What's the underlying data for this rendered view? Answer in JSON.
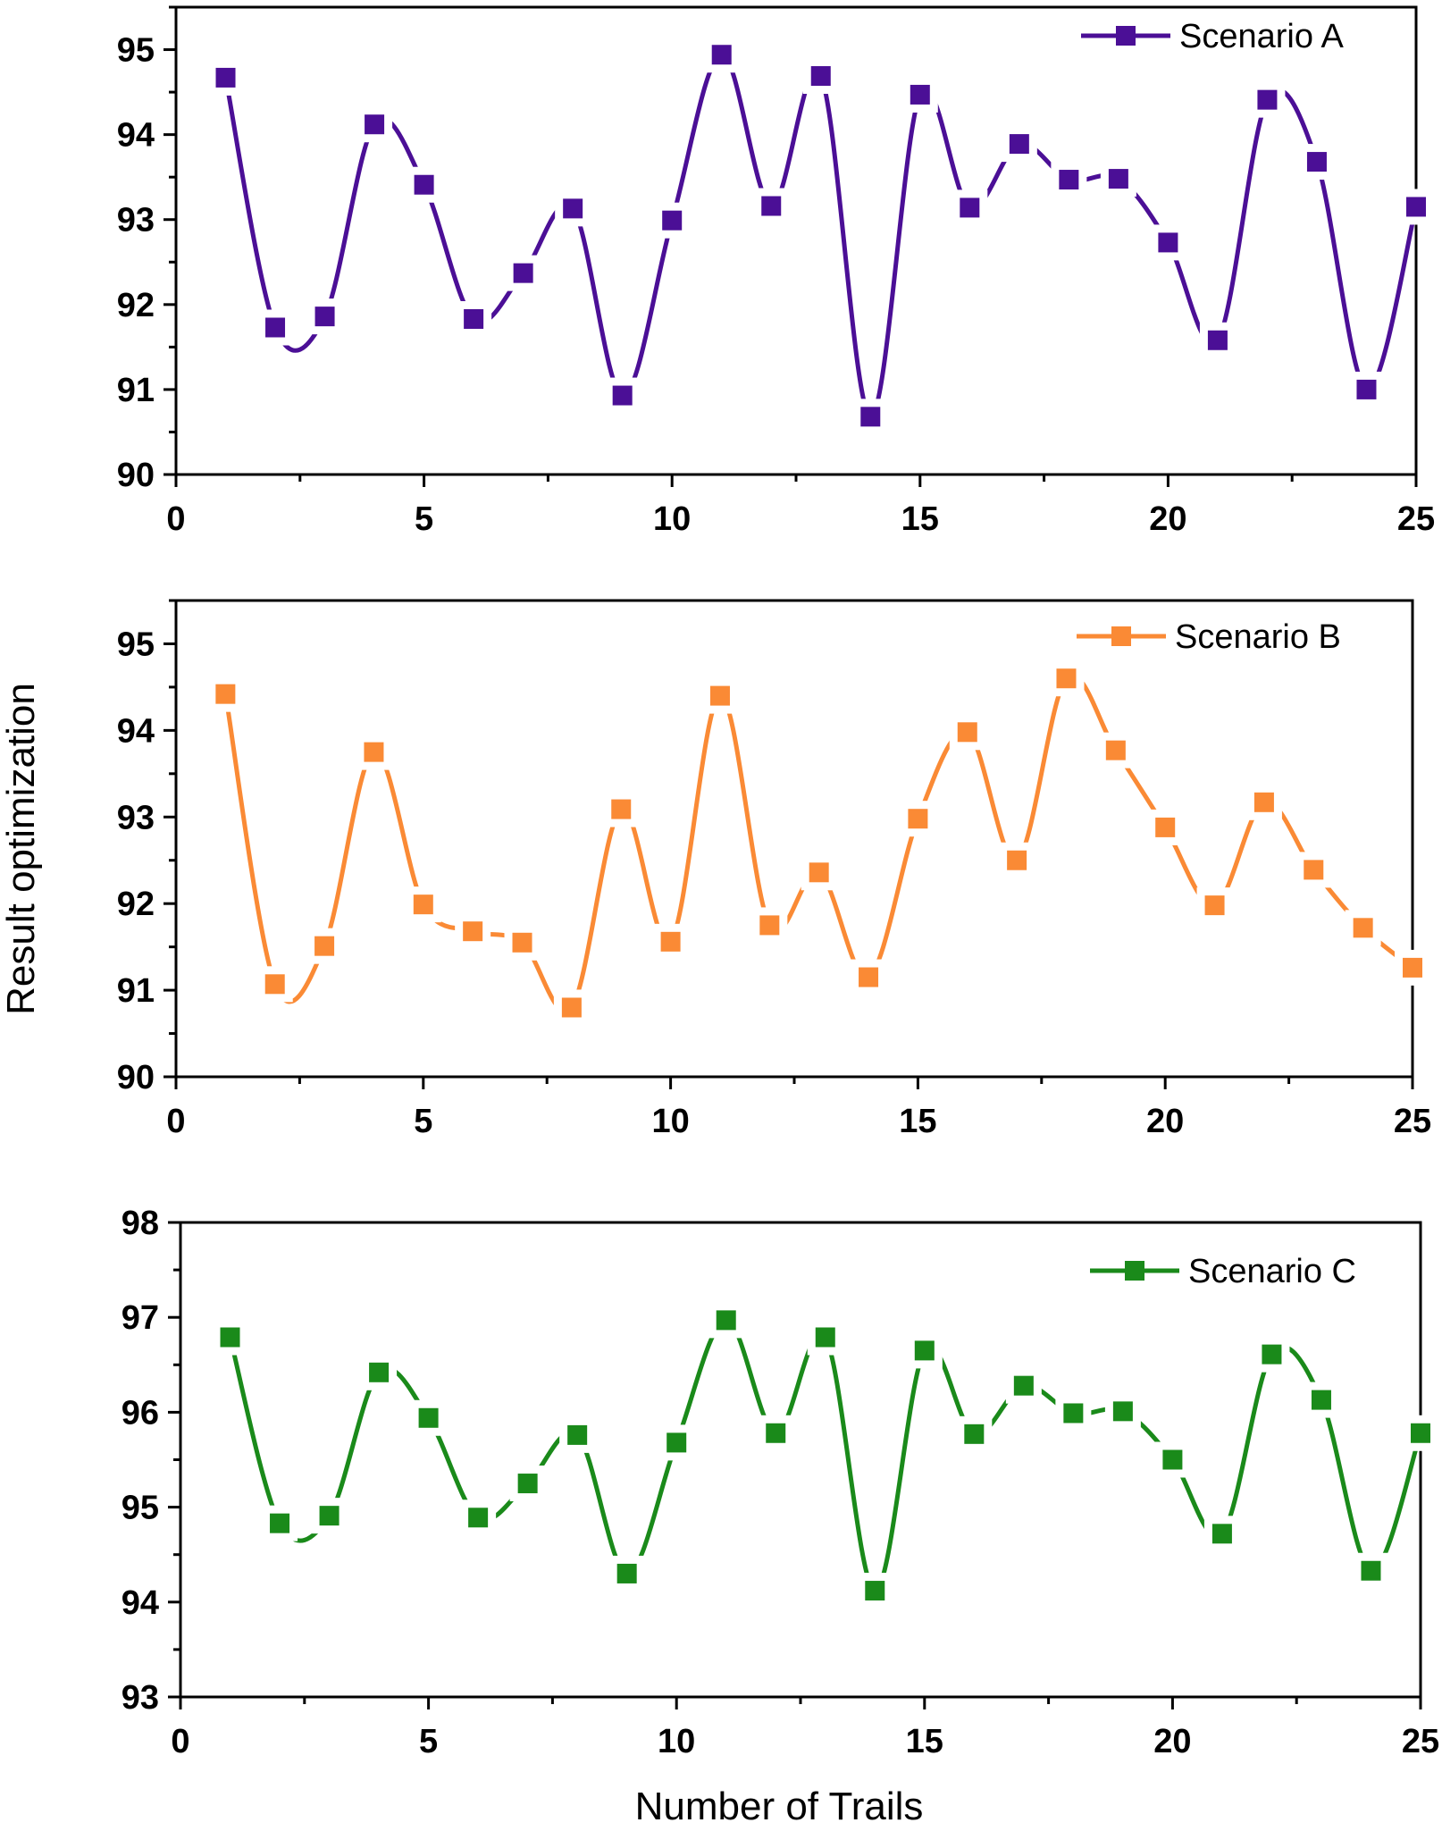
{
  "figure": {
    "ylabel": "Result optimization",
    "xlabel": "Number of Trails"
  },
  "chart_data": [
    {
      "type": "line",
      "x": [
        1,
        2,
        3,
        4,
        5,
        6,
        7,
        8,
        9,
        10,
        11,
        12,
        13,
        14,
        15,
        16,
        17,
        18,
        19,
        20,
        21,
        22,
        23,
        24,
        25
      ],
      "series": [
        {
          "name": "Scenario A",
          "color": "#4b0f96",
          "marker": "square",
          "values": [
            94.67,
            91.73,
            91.86,
            94.12,
            93.41,
            91.83,
            92.37,
            93.13,
            90.93,
            92.99,
            94.94,
            93.16,
            94.69,
            90.68,
            94.47,
            93.14,
            93.89,
            93.47,
            93.48,
            92.73,
            91.58,
            94.41,
            93.68,
            91.0,
            93.15
          ]
        }
      ],
      "xlim": [
        0,
        25
      ],
      "ylim": [
        90,
        95.5
      ],
      "xticks": [
        0,
        5,
        10,
        15,
        20,
        25
      ],
      "yticks": [
        90,
        91,
        92,
        93,
        94,
        95
      ],
      "grid": false,
      "legend": "top-right"
    },
    {
      "type": "line",
      "x": [
        1,
        2,
        3,
        4,
        5,
        6,
        7,
        8,
        9,
        10,
        11,
        12,
        13,
        14,
        15,
        16,
        17,
        18,
        19,
        20,
        21,
        22,
        23,
        24,
        25
      ],
      "series": [
        {
          "name": "Scenario B",
          "color": "#fa8a35",
          "marker": "square",
          "values": [
            94.42,
            91.07,
            91.51,
            93.75,
            91.99,
            91.68,
            91.55,
            90.8,
            93.09,
            91.56,
            94.4,
            91.75,
            92.36,
            91.15,
            92.98,
            93.98,
            92.5,
            94.6,
            93.77,
            92.88,
            91.98,
            93.17,
            92.39,
            91.72,
            91.26
          ]
        }
      ],
      "xlim": [
        0,
        25
      ],
      "ylim": [
        90,
        95.5
      ],
      "xticks": [
        0,
        5,
        10,
        15,
        20,
        25
      ],
      "yticks": [
        90,
        91,
        92,
        93,
        94,
        95
      ],
      "grid": false,
      "legend": "top-right"
    },
    {
      "type": "line",
      "x": [
        1,
        2,
        3,
        4,
        5,
        6,
        7,
        8,
        9,
        10,
        11,
        12,
        13,
        14,
        15,
        16,
        17,
        18,
        19,
        20,
        21,
        22,
        23,
        24,
        25
      ],
      "series": [
        {
          "name": "Scenario C",
          "color": "#1a8a1a",
          "marker": "square",
          "values": [
            96.79,
            94.83,
            94.91,
            96.42,
            95.94,
            94.89,
            95.25,
            95.76,
            94.3,
            95.68,
            96.97,
            95.78,
            96.79,
            94.12,
            96.65,
            95.77,
            96.28,
            95.99,
            96.01,
            95.5,
            94.72,
            96.61,
            96.13,
            94.33,
            95.78
          ]
        }
      ],
      "xlim": [
        0,
        25
      ],
      "ylim": [
        93,
        98
      ],
      "xticks": [
        0,
        5,
        10,
        15,
        20,
        25
      ],
      "yticks": [
        93,
        94,
        95,
        96,
        97,
        98
      ],
      "grid": false,
      "legend": "top-right"
    }
  ]
}
